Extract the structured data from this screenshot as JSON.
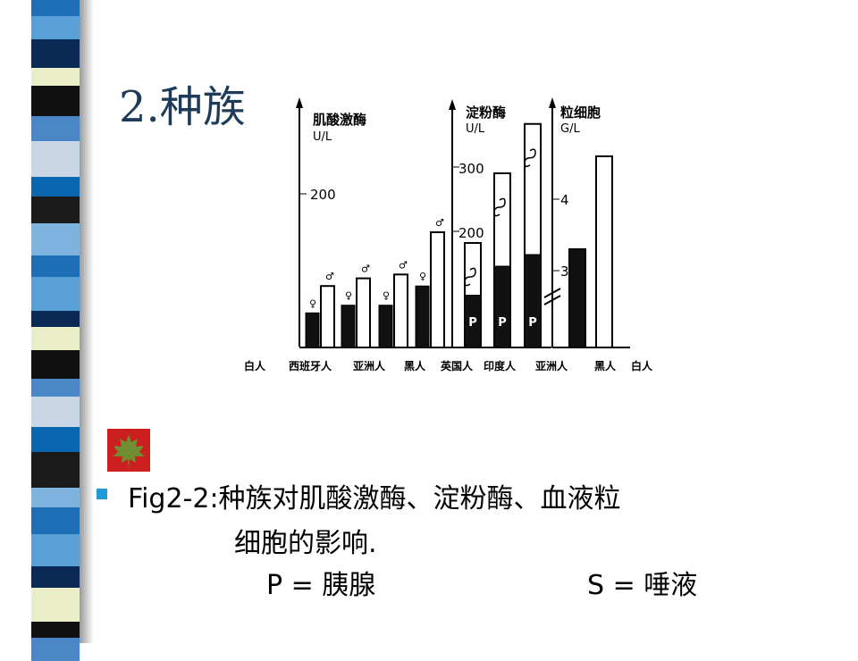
{
  "slide_title": "2.种族",
  "caption": {
    "line1": "Fig2-2:种族对肌酸激酶、淀粉酶、血液粒",
    "line2": "细胞的影响.",
    "p_note": "P = 胰腺",
    "s_note": "S = 唾液"
  },
  "colors": {
    "accent": "#1e9ad6",
    "title": "#1f3b5a",
    "stripe": [
      "#1e6fb5",
      "#5aa0d8",
      "#0a2a55",
      "#e9edc8",
      "#111111",
      "#4a87c7",
      "#c9d6e6",
      "#0b66b0",
      "#1b1b1b",
      "#7fb3e0"
    ]
  },
  "chart_data": [
    {
      "type": "bar",
      "ylabel": "肌酸激酶",
      "yunit": "U/L",
      "yticks": [
        "200"
      ],
      "categories": [
        "白人",
        "西班牙人",
        "亚洲人",
        "黑人"
      ],
      "series": [
        {
          "name": "♀",
          "values": [
            45,
            55,
            55,
            80
          ]
        },
        {
          "name": "♂",
          "values": [
            80,
            90,
            95,
            150
          ]
        }
      ]
    },
    {
      "type": "bar",
      "ylabel": "淀粉酶",
      "yunit": "U/L",
      "yticks": [
        "200",
        "300"
      ],
      "categories": [
        "英国人",
        "印度人",
        "亚洲人"
      ],
      "series": [
        {
          "name": "P",
          "values": [
            90,
            140,
            160
          ]
        },
        {
          "name": "S",
          "values": [
            180,
            300,
            385
          ]
        }
      ],
      "segment_labels": [
        "P",
        "P",
        "P"
      ]
    },
    {
      "type": "bar",
      "ylabel": "粒细胞",
      "yunit": "G/L",
      "yticks": [
        "3",
        "4"
      ],
      "categories": [
        "黑人",
        "白人"
      ],
      "values": [
        3.3,
        4.6
      ]
    }
  ],
  "category_row": [
    "白人",
    "西班牙人",
    "亚洲人",
    "黑人",
    "英国人",
    "印度人",
    "亚洲人",
    "黑人",
    "白人"
  ]
}
